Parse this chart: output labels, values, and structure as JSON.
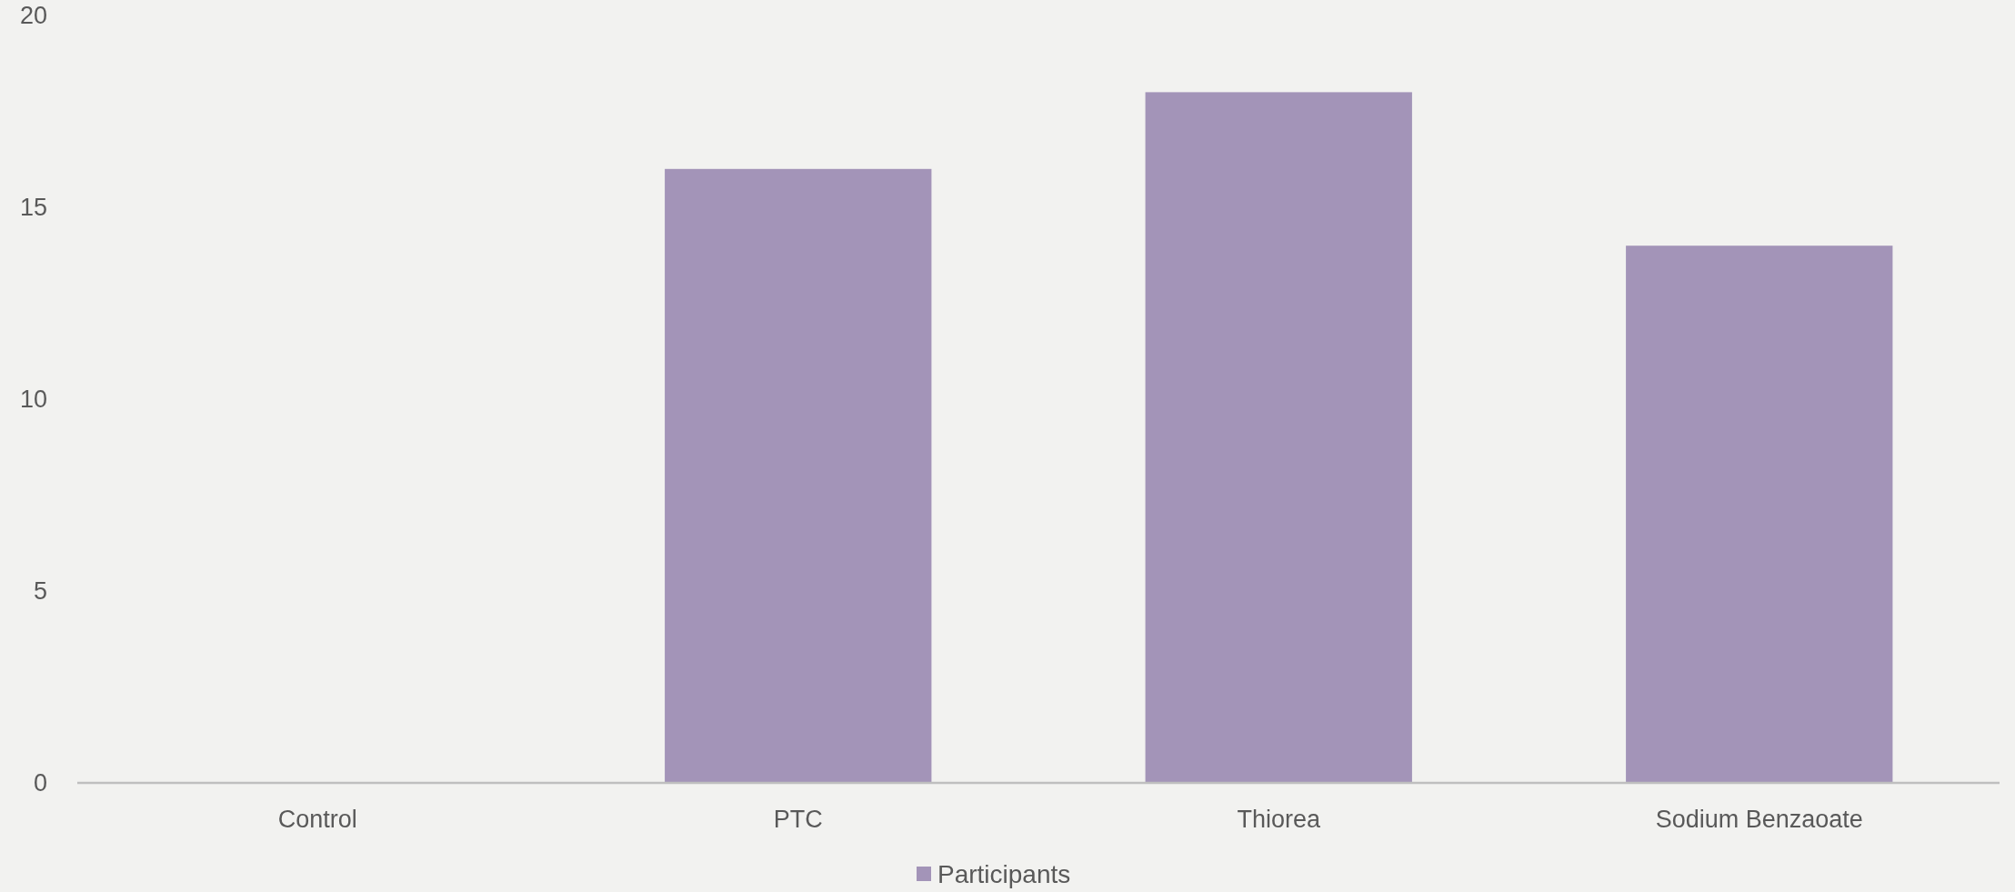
{
  "chart_data": {
    "type": "bar",
    "categories": [
      "Control",
      "PTC",
      "Thiorea",
      "Sodium Benzaoate"
    ],
    "series": [
      {
        "name": "Participants",
        "color": "#a394b8",
        "values": [
          0,
          16,
          18,
          14
        ]
      }
    ],
    "ylim": [
      0,
      20
    ],
    "yticks": [
      0,
      5,
      10,
      15,
      20
    ],
    "grid": false,
    "legend": "bottom"
  }
}
